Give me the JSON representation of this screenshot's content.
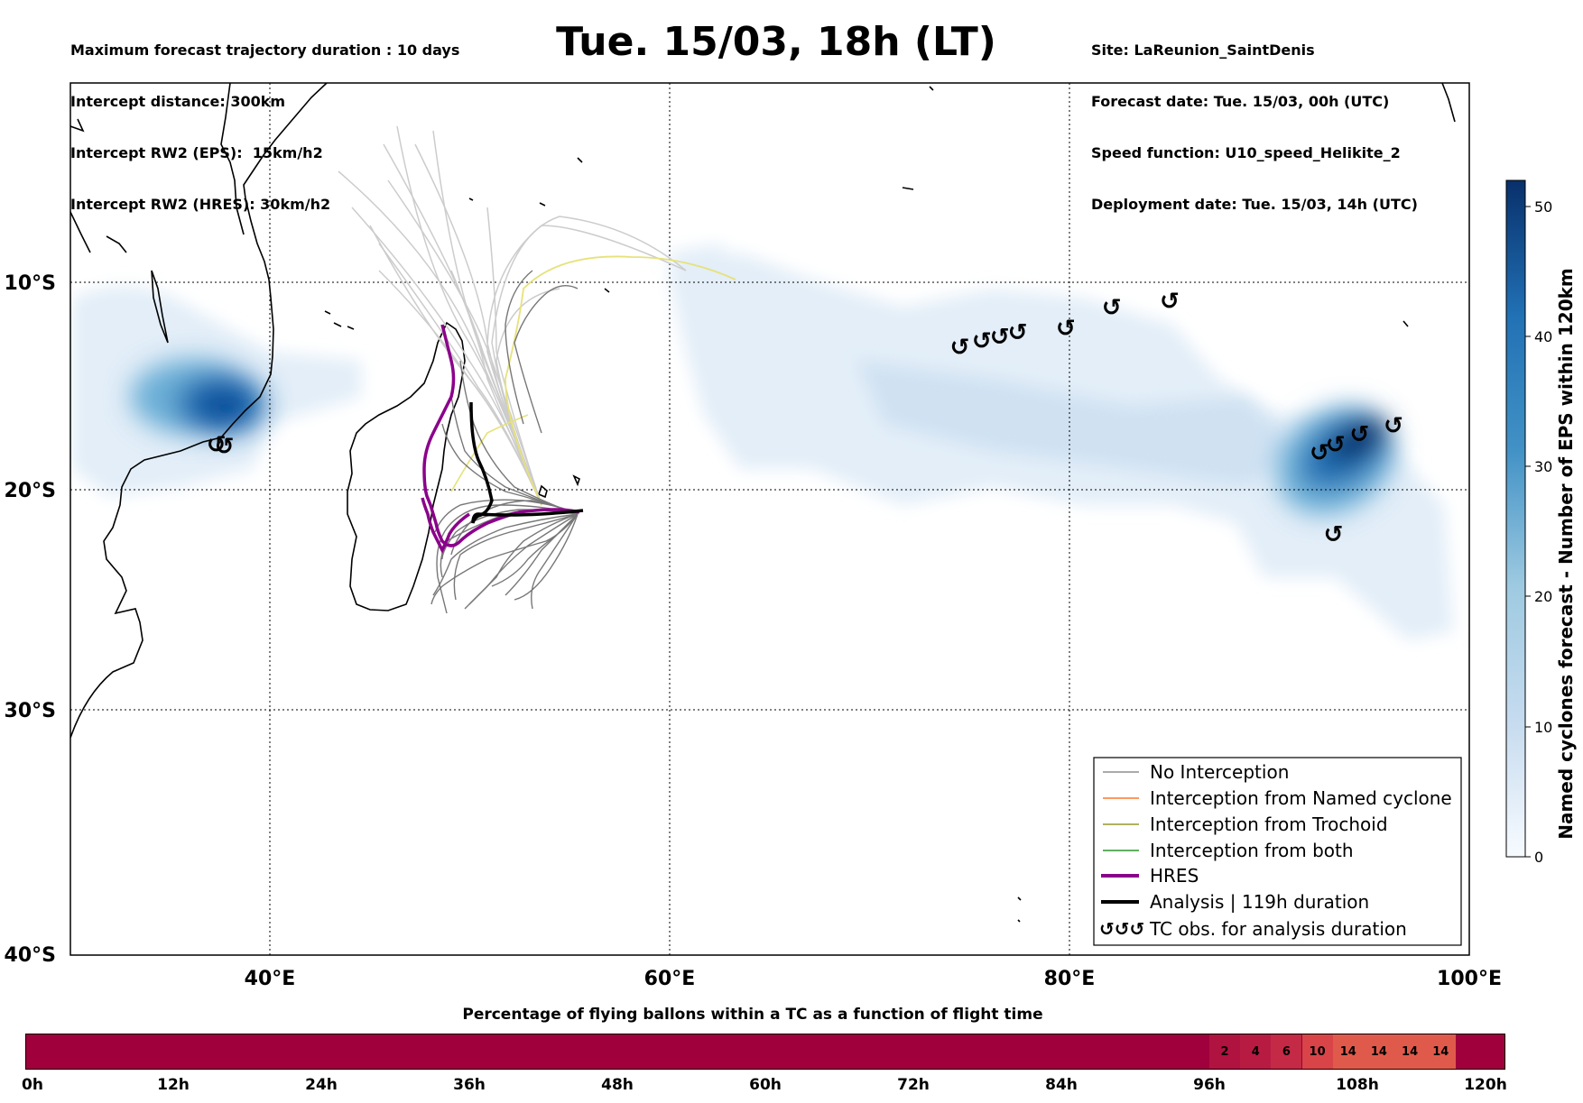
{
  "header": {
    "left_lines": [
      "Maximum forecast trajectory duration : 10 days",
      "Intercept distance: 300km",
      "Intercept RW2 (EPS):  15km/h2",
      "Intercept RW2 (HRES): 30km/h2"
    ],
    "title": "Tue. 15/03, 18h (LT)",
    "right_lines": [
      "Site: LaReunion_SaintDenis",
      "Forecast date: Tue. 15/03, 00h (UTC)",
      "Speed function: U10_speed_Helikite_2",
      "Deployment date: Tue. 15/03, 14h (UTC)"
    ]
  },
  "map": {
    "lon_labels": [
      "40°E",
      "60°E",
      "80°E",
      "100°E"
    ],
    "lat_labels": [
      "10°S",
      "20°S",
      "30°S",
      "40°S"
    ],
    "lon_range": [
      30,
      100
    ],
    "lat_range": [
      -40,
      -0.5
    ],
    "grid": true,
    "colors": {
      "ensemble": "#777777",
      "ensemble_light": "#cccccc",
      "trochoid": "#e6e27a",
      "hres": "#8b008b",
      "analysis": "#000000",
      "density_low": "#deebf7",
      "density_high": "#08306b"
    },
    "tc_obs_groups": [
      {
        "name": "mozambique-channel",
        "points": [
          [
            37.3,
            -17.8
          ],
          [
            37.7,
            -17.9
          ]
        ]
      },
      {
        "name": "east-indian-ocean-north",
        "points": [
          [
            74.5,
            -13.1
          ],
          [
            75.6,
            -12.8
          ],
          [
            76.5,
            -12.6
          ],
          [
            77.4,
            -12.4
          ],
          [
            79.8,
            -12.2
          ],
          [
            82.1,
            -11.2
          ],
          [
            85.0,
            -10.9
          ]
        ]
      },
      {
        "name": "east-indian-ocean-south",
        "points": [
          [
            96.2,
            -16.9
          ],
          [
            94.5,
            -17.3
          ],
          [
            93.3,
            -17.8
          ],
          [
            92.5,
            -18.2
          ],
          [
            93.2,
            -22.0
          ]
        ]
      }
    ]
  },
  "legend": {
    "items": [
      {
        "label": "No Interception",
        "color": "#777777",
        "kind": "line-thin"
      },
      {
        "label": "Interception from Named cyclone",
        "color": "#ff5a00",
        "kind": "line-thin"
      },
      {
        "label": "Interception from Trochoid",
        "color": "#808000",
        "kind": "line-thin"
      },
      {
        "label": "Interception from both",
        "color": "#008000",
        "kind": "line-thin"
      },
      {
        "label": "HRES",
        "color": "#8b008b",
        "kind": "line-thick"
      },
      {
        "label": "Analysis | 119h duration",
        "color": "#000000",
        "kind": "line-thick"
      },
      {
        "label": "TC obs. for analysis duration",
        "color": "#000000",
        "kind": "symbol"
      }
    ],
    "symbol_glyph": "↺↺↺"
  },
  "colorbar": {
    "title": "Named cyclones forecast - Number of EPS within 120km",
    "ticks": [
      "0",
      "10",
      "20",
      "30",
      "40",
      "50"
    ],
    "range": [
      0,
      52
    ]
  },
  "flight_bar": {
    "title": "Percentage of flying ballons within a TC as a function of flight time",
    "ticks": [
      "0h",
      "12h",
      "24h",
      "36h",
      "48h",
      "60h",
      "72h",
      "84h",
      "96h",
      "108h",
      "120h"
    ],
    "cells": [
      {
        "label": "2",
        "color": "#b01340"
      },
      {
        "label": "4",
        "color": "#b81b42"
      },
      {
        "label": "6",
        "color": "#c42a45"
      },
      {
        "label": "10",
        "color": "#d84448"
      },
      {
        "label": "14",
        "color": "#e05a4b"
      },
      {
        "label": "14",
        "color": "#e05a4b"
      },
      {
        "label": "14",
        "color": "#e05a4b"
      },
      {
        "label": "14",
        "color": "#e05a4b"
      }
    ]
  }
}
